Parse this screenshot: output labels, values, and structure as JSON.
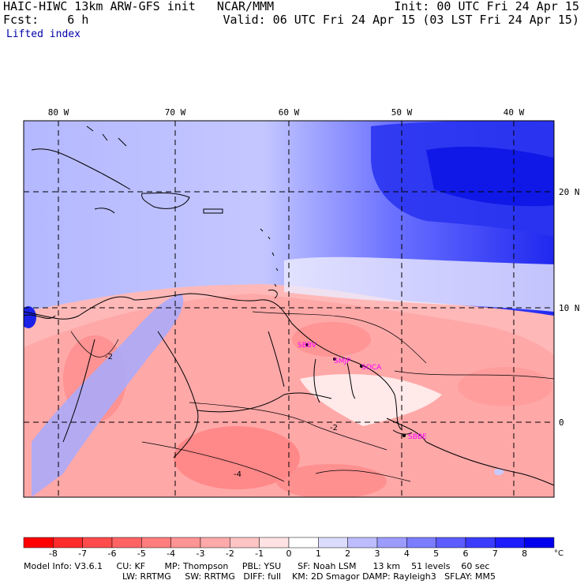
{
  "header": {
    "title": "HAIC-HIWC 13km ARW-GFS init   NCAR/MMM",
    "init": "Init: 00 UTC Fri 24 Apr 15",
    "fcst_label": "Fcst:    6 h",
    "valid": "Valid: 06 UTC Fri 24 Apr 15 (03 LST Fri 24 Apr 15)",
    "field": "Lifted index"
  },
  "map": {
    "lon_labels": [
      "80 W",
      "70 W",
      "60 W",
      "50 W",
      "40 W"
    ],
    "lat_labels": [
      "20 N",
      "10 N",
      "0"
    ],
    "stations": [
      "SBBV",
      "SMJP",
      "SOCA",
      "SBBE"
    ],
    "contour_labels": [
      "-2",
      "-2",
      "-4"
    ]
  },
  "colorbar": {
    "tick_labels": [
      "-8",
      "-7",
      "-6",
      "-5",
      "-4",
      "-3",
      "-2",
      "-1",
      "0",
      "1",
      "2",
      "3",
      "4",
      "5",
      "6",
      "7",
      "8"
    ],
    "unit": "°C",
    "colors": [
      "#ff0000",
      "#ff2c2c",
      "#ff4b4b",
      "#ff6464",
      "#ff7d7d",
      "#ff9494",
      "#ffaaaa",
      "#ffc4c4",
      "#ffe3e3",
      "#ffffff",
      "#dcdcff",
      "#bcbcff",
      "#9c9cff",
      "#7c7cff",
      "#5c5cff",
      "#3c3cff",
      "#1c1cff",
      "#0000ee"
    ]
  },
  "model_info": {
    "line1": "Model Info: V3.6.1     CU: KF       MP: Thompson     PBL: YSU      SF: Noah LSM      13 km    51 levels    60 sec",
    "line2": "LW: RRTMG     SW: RRTMG   DIFF: full    KM: 2D Smagor DAMP: Rayleigh3   SFLAY: MM5"
  }
}
